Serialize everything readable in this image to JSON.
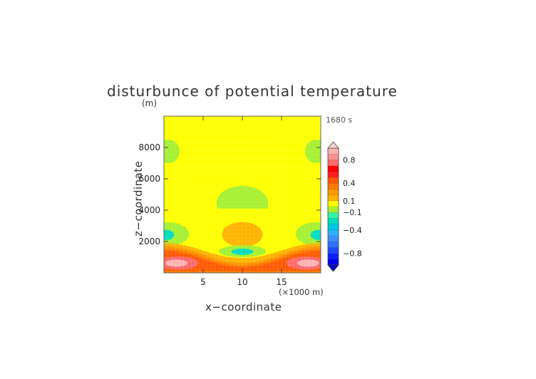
{
  "chart_data": {
    "type": "heatmap",
    "title": "disturbunce of potential temperature",
    "ylabel": "z−coordinate",
    "yunit": "(m)",
    "xlabel": "x−coordinate",
    "xunit": "(×1000 m)",
    "time_label": "1680 s",
    "xlim": [
      0,
      20
    ],
    "ylim": [
      0,
      10000
    ],
    "xticks": [
      "5",
      "10",
      "15"
    ],
    "xtick_values": [
      5,
      10,
      15
    ],
    "yticks": [
      "2000",
      "4000",
      "6000",
      "8000"
    ],
    "ytick_values": [
      2000,
      4000,
      6000,
      8000
    ],
    "colorbar": {
      "levels": [
        -1.0,
        -0.9,
        -0.8,
        -0.7,
        -0.6,
        -0.5,
        -0.4,
        -0.3,
        -0.2,
        -0.1,
        0,
        0.1,
        0.2,
        0.3,
        0.4,
        0.5,
        0.6,
        0.7,
        0.8,
        0.9,
        1.0
      ],
      "colors": [
        "#0000e8",
        "#0a1fff",
        "#1e4aff",
        "#2f6fff",
        "#3a8fff",
        "#2fb0ff",
        "#00c8e6",
        "#00dcc0",
        "#34f2a8",
        "#a6f032",
        "#ffff00",
        "#ffb400",
        "#ff9900",
        "#ff7a00",
        "#ff5a00",
        "#ff1e1e",
        "#ff0000",
        "#ff6a6a",
        "#ff9090",
        "#ffb2b2"
      ],
      "labels": [
        {
          "value": 0.8,
          "text": "0.8"
        },
        {
          "value": 0.4,
          "text": "0.4"
        },
        {
          "value": 0.1,
          "text": "0.1"
        },
        {
          "value": -0.1,
          "text": "−0.1"
        },
        {
          "value": -0.4,
          "text": "−0.4"
        },
        {
          "value": -0.8,
          "text": "−0.8"
        }
      ],
      "extend": "both",
      "top_extension_color": "#ffd2d2",
      "bottom_extension_color": "#0000c8"
    },
    "background_value": 0.0,
    "features": [
      {
        "shape": "ellipse",
        "cx": 0.6,
        "cy": 7750,
        "rx": 1.4,
        "ry": 750,
        "value": -0.05
      },
      {
        "shape": "ellipse",
        "cx": 19.4,
        "cy": 7750,
        "rx": 1.4,
        "ry": 750,
        "value": -0.05
      },
      {
        "shape": "ellipse",
        "cx": 10.1,
        "cy": 8000,
        "rx": 2.5,
        "ry": 1100,
        "value": 0.05
      },
      {
        "shape": "ellipse",
        "cx": 0.8,
        "cy": 4300,
        "rx": 2.5,
        "ry": 1250,
        "value": 0.05
      },
      {
        "shape": "ellipse",
        "cx": 19.2,
        "cy": 4300,
        "rx": 2.5,
        "ry": 1250,
        "value": 0.05
      },
      {
        "shape": "ellipse",
        "cx": 10.0,
        "cy": 4450,
        "rx": 3.3,
        "ry": 1100,
        "value": -0.05
      },
      {
        "shape": "ellipse",
        "cx": 0.5,
        "cy": 2480,
        "rx": 2.7,
        "ry": 750,
        "value": -0.05
      },
      {
        "shape": "ellipse",
        "cx": 19.5,
        "cy": 2480,
        "rx": 2.7,
        "ry": 750,
        "value": -0.05
      },
      {
        "shape": "ellipse",
        "cx": 0.3,
        "cy": 2420,
        "rx": 1.0,
        "ry": 320,
        "value": -0.25
      },
      {
        "shape": "ellipse",
        "cx": 19.7,
        "cy": 2420,
        "rx": 1.0,
        "ry": 320,
        "value": -0.25
      },
      {
        "shape": "rect",
        "x0": 5.2,
        "x1": 14.8,
        "y0": 1600,
        "y1": 4100,
        "rx": 1.8,
        "value": 0.05
      },
      {
        "shape": "ellipse",
        "cx": 10.0,
        "cy": 2450,
        "rx": 2.6,
        "ry": 800,
        "value": 0.15
      },
      {
        "shape": "ellipse",
        "cx": 10.0,
        "cy": 1380,
        "rx": 3.0,
        "ry": 380,
        "value": -0.05
      },
      {
        "shape": "ellipse",
        "cx": 10.0,
        "cy": 1350,
        "rx": 1.4,
        "ry": 200,
        "value": -0.25
      }
    ],
    "bottom_band": {
      "boundaries": [
        {
          "value": 0.15,
          "top_edge": 1900,
          "mid_top": 950
        },
        {
          "value": 0.25,
          "top_edge": 1700,
          "mid_top": 650
        },
        {
          "value": 0.35,
          "top_edge": 1550,
          "mid_top": 500
        },
        {
          "value": 0.45,
          "top_edge": 1400,
          "mid_top": 350
        }
      ],
      "bottom_strip": {
        "y": 130,
        "value": 0.35
      }
    },
    "bottom_lobes": [
      {
        "cx": 1.8,
        "cy": 620,
        "rx": 2.6,
        "ry": 420,
        "value": 0.75
      },
      {
        "cx": 18.2,
        "cy": 620,
        "rx": 2.6,
        "ry": 420,
        "value": 0.75
      },
      {
        "cx": 1.6,
        "cy": 620,
        "rx": 1.4,
        "ry": 230,
        "value": 0.95
      },
      {
        "cx": 18.4,
        "cy": 620,
        "rx": 1.4,
        "ry": 230,
        "value": 0.95
      }
    ]
  }
}
